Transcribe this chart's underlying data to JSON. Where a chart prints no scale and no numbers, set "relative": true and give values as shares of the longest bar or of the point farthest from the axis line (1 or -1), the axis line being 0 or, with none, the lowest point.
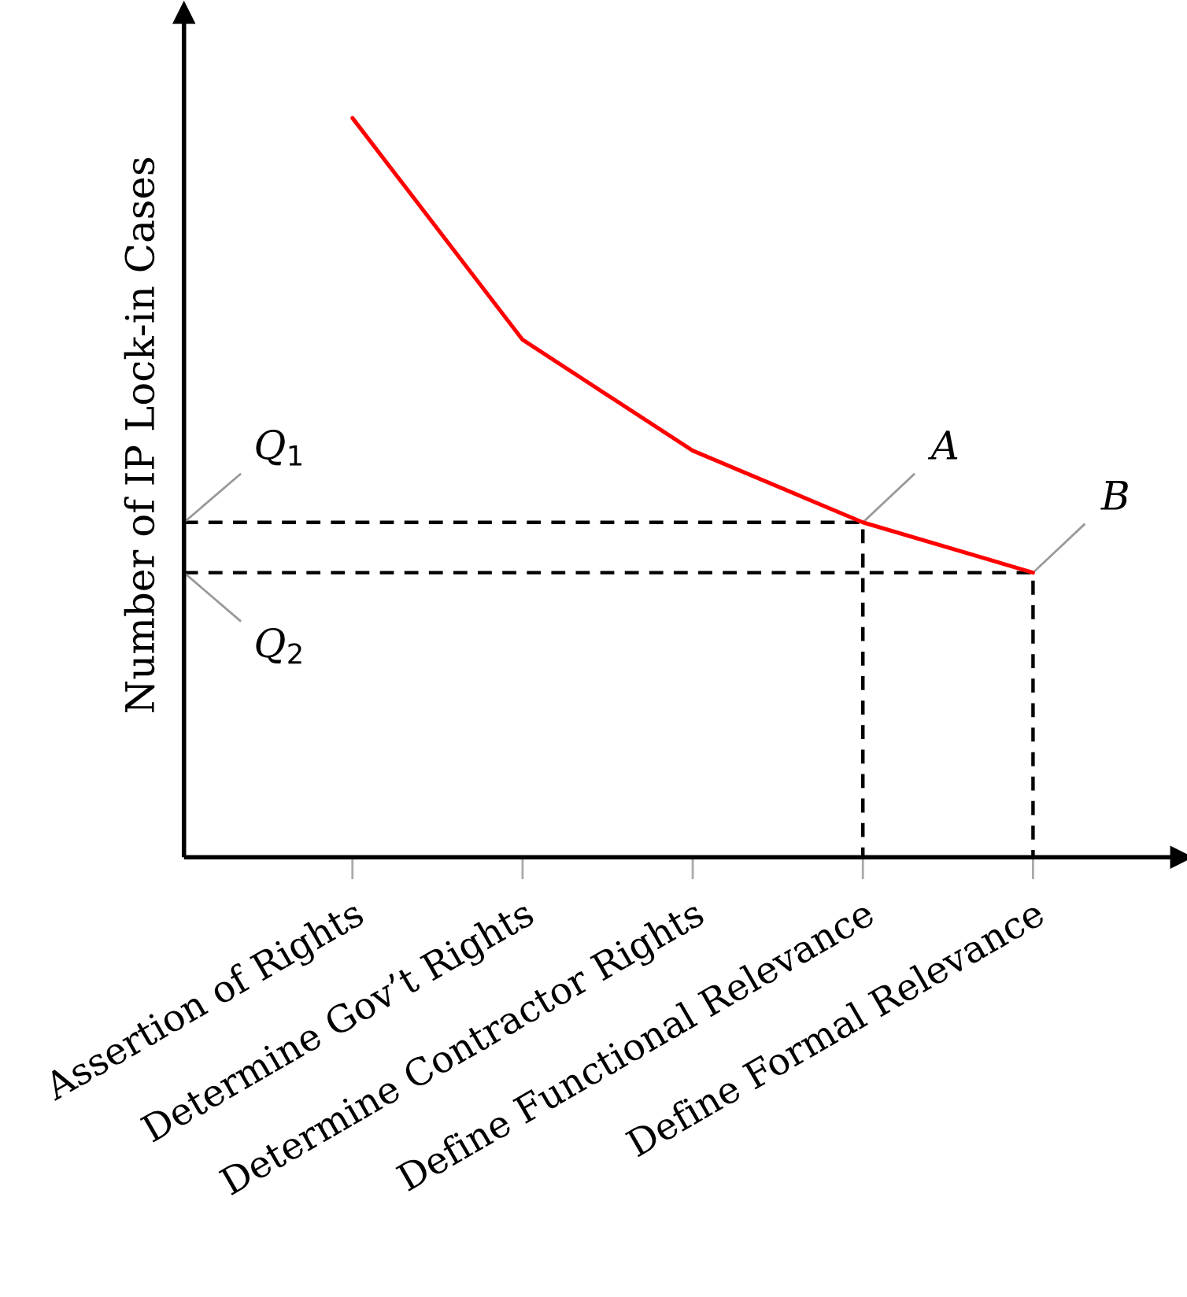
{
  "chart_data": {
    "type": "line",
    "ylabel": "Number of IP Lock-in Cases",
    "relative": true,
    "categories": [
      "Assertion of Rights",
      "Determine Gov’t Rights",
      "Determine Contractor Rights",
      "Define Functional Relevance",
      "Define Formal Relevance"
    ],
    "series": [
      {
        "color": "#ff0000",
        "values": [
          1,
          0.7,
          0.55,
          0.453,
          0.385
        ]
      }
    ],
    "annotations": [
      {
        "text": "A",
        "x": "Define Functional Relevance",
        "y": 0.453
      },
      {
        "text": "B",
        "x": "Define Formal Relevance",
        "y": 0.385
      },
      "Q$_{1}$",
      "Q$_{2}$"
    ]
  }
}
